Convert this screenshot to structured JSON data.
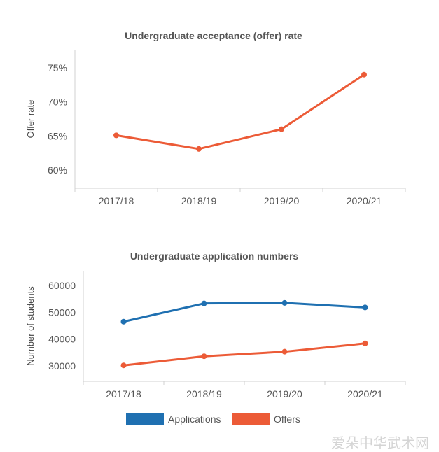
{
  "chart_data": [
    {
      "type": "line",
      "title": "Undergraduate acceptance (offer) rate",
      "xlabel": "",
      "ylabel": "Offer rate",
      "categories": [
        "2017/18",
        "2018/19",
        "2019/20",
        "2020/21"
      ],
      "ylim": [
        57,
        77
      ],
      "yticks": [
        60,
        65,
        70,
        75
      ],
      "yticks_labels": [
        "60%",
        "65%",
        "70%",
        "75%"
      ],
      "grid": false,
      "series": [
        {
          "values": [
            65.1,
            63.1,
            66.0,
            74.0
          ],
          "color": "#ec5b37"
        }
      ]
    },
    {
      "type": "line",
      "title": "Undergraduate application numbers",
      "xlabel": "",
      "ylabel": "Number of students",
      "categories": [
        "2017/18",
        "2018/19",
        "2019/20",
        "2020/21"
      ],
      "ylim": [
        25000,
        65000
      ],
      "yticks": [
        30000,
        40000,
        50000,
        60000
      ],
      "yticks_labels": [
        "30000",
        "40000",
        "50000",
        "60000"
      ],
      "grid": false,
      "legend": "bottom",
      "series": [
        {
          "name": "Applications",
          "values": [
            46500,
            53300,
            53500,
            51800
          ],
          "color": "#1f70b1"
        },
        {
          "name": "Offers",
          "values": [
            30200,
            33600,
            35300,
            38400
          ],
          "color": "#ec5b37"
        }
      ]
    }
  ],
  "watermark": "爱朵中华武术网"
}
